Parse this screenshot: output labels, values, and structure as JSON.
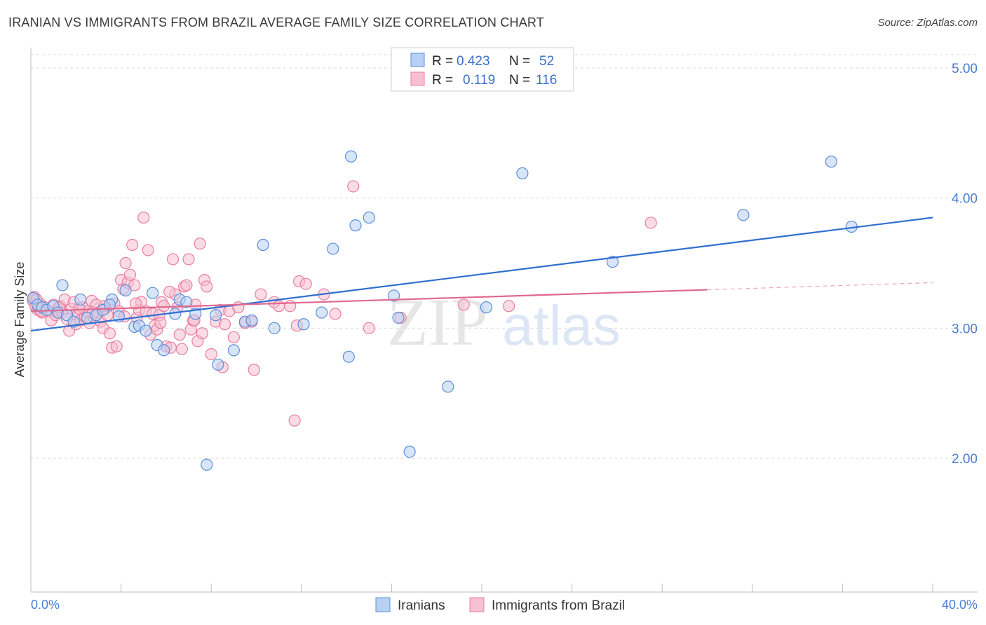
{
  "title": "IRANIAN VS IMMIGRANTS FROM BRAZIL AVERAGE FAMILY SIZE CORRELATION CHART",
  "source": "Source: ZipAtlas.com",
  "watermark": {
    "zip": "ZIP",
    "atlas": "atlas"
  },
  "colors": {
    "blue": "#5b8fd9",
    "blue_fill": "#b8d0f2",
    "blue_line": "#2f6fd0",
    "pink": "#e87fa0",
    "pink_fill": "#f7c0d1",
    "pink_line": "#e0688f",
    "grid": "#d9d9d9",
    "axis_text": "#4a7fd0"
  },
  "legend_top": {
    "rows": [
      {
        "r_label": "R =",
        "r_value": "0.423",
        "n_label": "N =",
        "n_value": "52",
        "color": "blue"
      },
      {
        "r_label": "R =",
        "r_value": "0.119",
        "n_label": "N =",
        "n_value": "116",
        "color": "pink"
      }
    ]
  },
  "chart_data": {
    "type": "scatter",
    "xlabel": "",
    "ylabel": "Average Family Size",
    "xlim": [
      0,
      40
    ],
    "ylim": [
      1.0,
      5.15
    ],
    "x_tick_labels": [
      "0.0%",
      "40.0%"
    ],
    "y_ticks": [
      2.0,
      3.0,
      4.0,
      5.0
    ],
    "y_tick_labels": [
      "2.00",
      "3.00",
      "4.00",
      "5.00"
    ],
    "grid": "horizontal dashed",
    "legend_position": "top-center and bottom",
    "series": [
      {
        "name": "Iranians",
        "color": "blue",
        "trend": {
          "x": [
            0,
            40
          ],
          "y": [
            2.98,
            3.85
          ],
          "dashed_from": null
        },
        "points": [
          [
            0.1,
            3.23
          ],
          [
            0.3,
            3.18
          ],
          [
            0.5,
            3.16
          ],
          [
            0.7,
            3.14
          ],
          [
            1.0,
            3.17
          ],
          [
            1.2,
            3.12
          ],
          [
            1.4,
            3.33
          ],
          [
            1.6,
            3.1
          ],
          [
            1.9,
            3.05
          ],
          [
            2.2,
            3.22
          ],
          [
            2.5,
            3.08
          ],
          [
            2.9,
            3.1
          ],
          [
            3.2,
            3.14
          ],
          [
            3.6,
            3.22
          ],
          [
            3.9,
            3.09
          ],
          [
            4.2,
            3.29
          ],
          [
            4.6,
            3.01
          ],
          [
            4.8,
            3.02
          ],
          [
            5.1,
            2.98
          ],
          [
            5.4,
            3.27
          ],
          [
            5.6,
            2.87
          ],
          [
            5.9,
            2.83
          ],
          [
            6.4,
            3.11
          ],
          [
            6.6,
            3.22
          ],
          [
            6.9,
            3.2
          ],
          [
            7.3,
            3.11
          ],
          [
            7.8,
            1.95
          ],
          [
            8.2,
            3.1
          ],
          [
            8.3,
            2.72
          ],
          [
            9.0,
            2.83
          ],
          [
            9.5,
            3.05
          ],
          [
            9.8,
            3.06
          ],
          [
            10.3,
            3.64
          ],
          [
            10.8,
            3.0
          ],
          [
            12.1,
            3.03
          ],
          [
            12.9,
            3.12
          ],
          [
            13.4,
            3.61
          ],
          [
            14.1,
            2.78
          ],
          [
            14.2,
            4.32
          ],
          [
            14.4,
            3.79
          ],
          [
            15.0,
            3.85
          ],
          [
            16.1,
            3.25
          ],
          [
            16.3,
            3.08
          ],
          [
            16.8,
            2.05
          ],
          [
            18.5,
            2.55
          ],
          [
            20.2,
            3.16
          ],
          [
            21.8,
            4.19
          ],
          [
            25.8,
            3.51
          ],
          [
            31.6,
            3.87
          ],
          [
            35.5,
            4.28
          ],
          [
            36.4,
            3.78
          ],
          [
            3.5,
            3.18
          ]
        ]
      },
      {
        "name": "Immigrants from Brazil",
        "color": "pink",
        "trend": {
          "x": [
            0,
            40
          ],
          "y": [
            3.13,
            3.35
          ],
          "dashed_from": 30
        },
        "points": [
          [
            0.1,
            3.21
          ],
          [
            0.2,
            3.17
          ],
          [
            0.3,
            3.14
          ],
          [
            0.4,
            3.19
          ],
          [
            0.5,
            3.12
          ],
          [
            0.6,
            3.16
          ],
          [
            0.8,
            3.13
          ],
          [
            0.9,
            3.06
          ],
          [
            1.0,
            3.18
          ],
          [
            1.1,
            3.1
          ],
          [
            1.2,
            3.14
          ],
          [
            1.3,
            3.17
          ],
          [
            1.4,
            3.12
          ],
          [
            1.5,
            3.22
          ],
          [
            1.6,
            3.07
          ],
          [
            1.7,
            2.98
          ],
          [
            1.8,
            3.15
          ],
          [
            1.9,
            3.2
          ],
          [
            2.0,
            3.03
          ],
          [
            2.1,
            3.11
          ],
          [
            2.2,
            3.06
          ],
          [
            2.3,
            3.16
          ],
          [
            2.4,
            3.09
          ],
          [
            2.5,
            3.13
          ],
          [
            2.6,
            3.04
          ],
          [
            2.7,
            3.21
          ],
          [
            2.8,
            3.08
          ],
          [
            2.9,
            3.18
          ],
          [
            3.0,
            3.12
          ],
          [
            3.1,
            3.05
          ],
          [
            3.2,
            3.0
          ],
          [
            3.3,
            3.15
          ],
          [
            3.4,
            3.1
          ],
          [
            3.5,
            2.96
          ],
          [
            3.6,
            2.85
          ],
          [
            3.7,
            3.19
          ],
          [
            3.8,
            2.86
          ],
          [
            3.9,
            3.13
          ],
          [
            4.0,
            3.37
          ],
          [
            4.1,
            3.3
          ],
          [
            4.2,
            3.5
          ],
          [
            4.3,
            3.35
          ],
          [
            4.4,
            3.41
          ],
          [
            4.5,
            3.64
          ],
          [
            4.6,
            3.33
          ],
          [
            4.7,
            3.08
          ],
          [
            4.8,
            3.14
          ],
          [
            4.9,
            3.2
          ],
          [
            5.0,
            3.85
          ],
          [
            5.1,
            3.13
          ],
          [
            5.2,
            3.6
          ],
          [
            5.3,
            2.95
          ],
          [
            5.4,
            3.11
          ],
          [
            5.5,
            3.02
          ],
          [
            5.6,
            2.99
          ],
          [
            5.7,
            3.1
          ],
          [
            5.8,
            3.2
          ],
          [
            5.9,
            3.17
          ],
          [
            6.0,
            2.86
          ],
          [
            6.2,
            2.85
          ],
          [
            6.3,
            3.53
          ],
          [
            6.4,
            3.26
          ],
          [
            6.5,
            3.16
          ],
          [
            6.6,
            2.95
          ],
          [
            6.7,
            2.84
          ],
          [
            6.8,
            3.32
          ],
          [
            6.9,
            3.33
          ],
          [
            7.0,
            3.53
          ],
          [
            7.1,
            2.99
          ],
          [
            7.2,
            3.06
          ],
          [
            7.3,
            3.18
          ],
          [
            7.4,
            2.9
          ],
          [
            7.5,
            3.65
          ],
          [
            7.6,
            2.96
          ],
          [
            7.7,
            3.37
          ],
          [
            7.8,
            3.32
          ],
          [
            8.0,
            2.8
          ],
          [
            8.2,
            3.05
          ],
          [
            8.4,
            3.14
          ],
          [
            8.5,
            2.7
          ],
          [
            8.6,
            3.03
          ],
          [
            8.8,
            3.13
          ],
          [
            9.0,
            2.93
          ],
          [
            9.2,
            3.16
          ],
          [
            9.5,
            3.04
          ],
          [
            9.8,
            3.05
          ],
          [
            9.9,
            2.68
          ],
          [
            10.2,
            3.26
          ],
          [
            10.8,
            3.2
          ],
          [
            11.0,
            3.17
          ],
          [
            11.5,
            3.17
          ],
          [
            11.7,
            2.29
          ],
          [
            11.8,
            3.02
          ],
          [
            11.9,
            3.36
          ],
          [
            12.2,
            3.34
          ],
          [
            13.0,
            3.26
          ],
          [
            13.5,
            3.11
          ],
          [
            14.3,
            4.09
          ],
          [
            15.0,
            3.0
          ],
          [
            16.4,
            3.08
          ],
          [
            19.2,
            3.18
          ],
          [
            21.2,
            3.17
          ],
          [
            27.5,
            3.81
          ],
          [
            0.15,
            3.24
          ],
          [
            0.25,
            3.22
          ],
          [
            0.35,
            3.15
          ],
          [
            0.45,
            3.13
          ],
          [
            1.25,
            3.16
          ],
          [
            2.15,
            3.15
          ],
          [
            2.75,
            3.12
          ],
          [
            3.25,
            3.17
          ],
          [
            4.15,
            3.09
          ],
          [
            4.65,
            3.19
          ],
          [
            5.75,
            3.04
          ],
          [
            6.15,
            3.28
          ],
          [
            7.25,
            3.06
          ]
        ]
      }
    ]
  }
}
